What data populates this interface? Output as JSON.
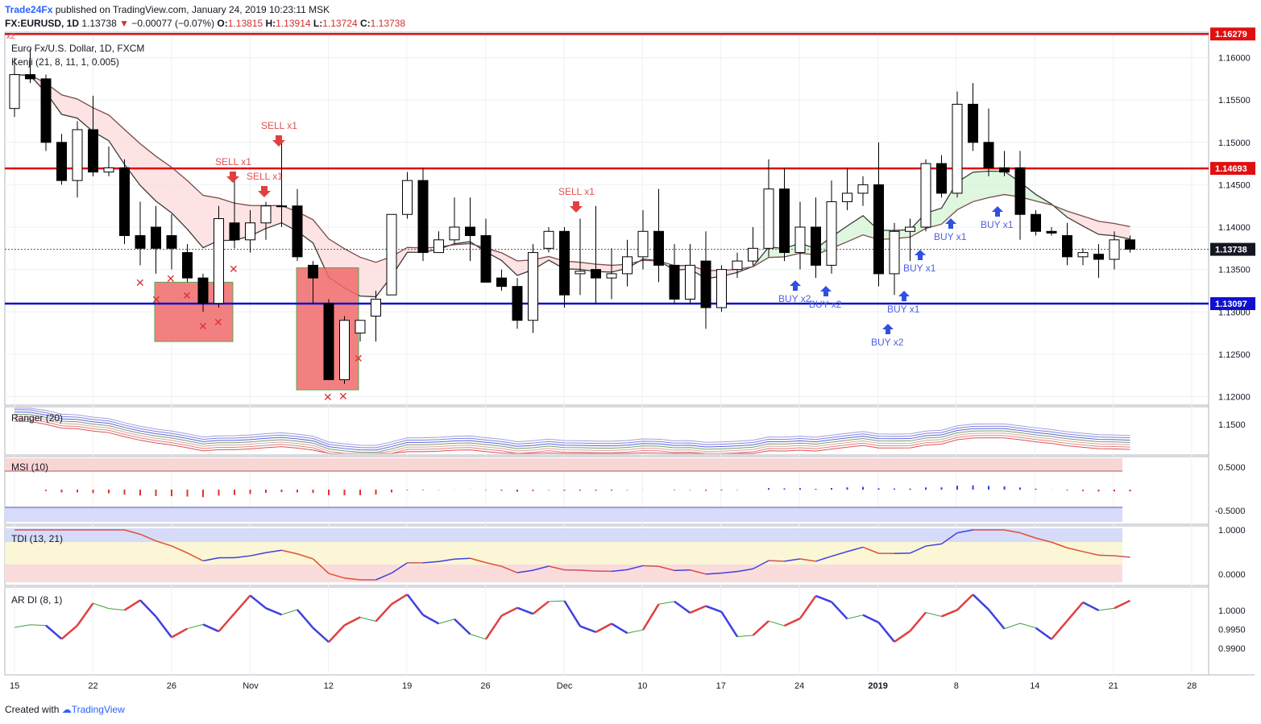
{
  "header": {
    "brand": "Trade24Fx",
    "published": "published on TradingView.com, January 24, 2019 10:23:11 MSK",
    "symbol": "FX:EURUSD, 1D",
    "last": "1.13738",
    "arrow": "▼",
    "change": "−0.00077 (−0.07%)",
    "o_label": "O:",
    "o_val": "1.13815",
    "h_label": "H:",
    "h_val": "1.13914",
    "l_label": "L:",
    "l_val": "1.13724",
    "c_label": "C:",
    "c_val": "1.13738"
  },
  "panes": {
    "main_title": "Euro Fx/U.S. Dollar, 1D, FXCM",
    "main_indicator": "Kenji (21, 8, 11, 1, 0.005)",
    "ranger": "Ranger (20)",
    "msi": "MSI (10)",
    "tdi": "TDI (13, 21)",
    "ardi": "AR DI (8, 1)"
  },
  "price_axis": [
    "1.16000",
    "1.15500",
    "1.15000",
    "1.14500",
    "1.14000",
    "1.13500",
    "1.13000",
    "1.12500",
    "1.12000"
  ],
  "price_tags": [
    {
      "value": "1.16279",
      "color": "#e01010"
    },
    {
      "value": "1.14693",
      "color": "#e01010"
    },
    {
      "value": "1.13738",
      "color": "#131722"
    },
    {
      "value": "1.13097",
      "color": "#1010d0"
    }
  ],
  "ranger_axis": [
    "1.1500"
  ],
  "msi_axis": [
    "0.5000",
    "-0.5000"
  ],
  "tdi_axis": [
    "1.0000",
    "0.0000"
  ],
  "ardi_axis": [
    "1.0000",
    "0.9950",
    "0.9900"
  ],
  "time_axis": [
    {
      "label": "15"
    },
    {
      "label": "22"
    },
    {
      "label": "26"
    },
    {
      "label": "Nov"
    },
    {
      "label": "12"
    },
    {
      "label": "19"
    },
    {
      "label": "26"
    },
    {
      "label": "Dec"
    },
    {
      "label": "10"
    },
    {
      "label": "17"
    },
    {
      "label": "24"
    },
    {
      "label": "2019"
    },
    {
      "label": "8"
    },
    {
      "label": "14"
    },
    {
      "label": "21"
    },
    {
      "label": "28"
    }
  ],
  "signals": {
    "sell": [
      "SELL x1",
      "SELL x1",
      "SELL x1",
      "SELL x1"
    ],
    "buy": [
      "BUY x2",
      "BUY x2",
      "BUY x2",
      "BUY x1",
      "BUY x1",
      "BUY x1",
      "BUY x1"
    ],
    "corner": "x2"
  },
  "colors": {
    "up": "#ffffff",
    "down": "#000000",
    "sell": "#e05050",
    "buy": "#5060e0",
    "res": "#e01010",
    "sup": "#1010d0"
  },
  "chart_data": {
    "type": "candlestick",
    "title": "Euro Fx/U.S. Dollar, 1D, FXCM",
    "levels": [
      1.16279,
      1.14693,
      1.13097
    ],
    "last_close": 1.13738,
    "ylim": [
      1.119,
      1.163
    ],
    "candles": [
      {
        "o": 1.154,
        "h": 1.16,
        "l": 1.153,
        "c": 1.158
      },
      {
        "o": 1.158,
        "h": 1.161,
        "l": 1.157,
        "c": 1.1575
      },
      {
        "o": 1.1575,
        "h": 1.158,
        "l": 1.149,
        "c": 1.15
      },
      {
        "o": 1.15,
        "h": 1.151,
        "l": 1.145,
        "c": 1.1455
      },
      {
        "o": 1.1455,
        "h": 1.1525,
        "l": 1.1435,
        "c": 1.1515
      },
      {
        "o": 1.1515,
        "h": 1.1555,
        "l": 1.146,
        "c": 1.1465
      },
      {
        "o": 1.1465,
        "h": 1.1495,
        "l": 1.146,
        "c": 1.147
      },
      {
        "o": 1.147,
        "h": 1.148,
        "l": 1.138,
        "c": 1.139
      },
      {
        "o": 1.139,
        "h": 1.143,
        "l": 1.1355,
        "c": 1.1375
      },
      {
        "o": 1.14,
        "h": 1.1425,
        "l": 1.1345,
        "c": 1.1375
      },
      {
        "o": 1.139,
        "h": 1.1415,
        "l": 1.135,
        "c": 1.1375
      },
      {
        "o": 1.137,
        "h": 1.138,
        "l": 1.1335,
        "c": 1.134
      },
      {
        "o": 1.134,
        "h": 1.1345,
        "l": 1.13,
        "c": 1.131
      },
      {
        "o": 1.131,
        "h": 1.1425,
        "l": 1.1305,
        "c": 1.141
      },
      {
        "o": 1.1405,
        "h": 1.1455,
        "l": 1.1375,
        "c": 1.1385
      },
      {
        "o": 1.1385,
        "h": 1.142,
        "l": 1.137,
        "c": 1.1405
      },
      {
        "o": 1.1405,
        "h": 1.143,
        "l": 1.1385,
        "c": 1.1425
      },
      {
        "o": 1.1425,
        "h": 1.15,
        "l": 1.14,
        "c": 1.1425
      },
      {
        "o": 1.1425,
        "h": 1.1445,
        "l": 1.136,
        "c": 1.1365
      },
      {
        "o": 1.1355,
        "h": 1.136,
        "l": 1.131,
        "c": 1.134
      },
      {
        "o": 1.131,
        "h": 1.1315,
        "l": 1.122,
        "c": 1.122
      },
      {
        "o": 1.122,
        "h": 1.1295,
        "l": 1.1215,
        "c": 1.129
      },
      {
        "o": 1.1275,
        "h": 1.129,
        "l": 1.1265,
        "c": 1.129
      },
      {
        "o": 1.1295,
        "h": 1.1325,
        "l": 1.1265,
        "c": 1.1315
      },
      {
        "o": 1.132,
        "h": 1.1415,
        "l": 1.132,
        "c": 1.1415
      },
      {
        "o": 1.1415,
        "h": 1.1465,
        "l": 1.141,
        "c": 1.1455
      },
      {
        "o": 1.1455,
        "h": 1.147,
        "l": 1.136,
        "c": 1.137
      },
      {
        "o": 1.137,
        "h": 1.1395,
        "l": 1.137,
        "c": 1.1385
      },
      {
        "o": 1.1385,
        "h": 1.1435,
        "l": 1.138,
        "c": 1.14
      },
      {
        "o": 1.14,
        "h": 1.1435,
        "l": 1.136,
        "c": 1.139
      },
      {
        "o": 1.139,
        "h": 1.141,
        "l": 1.1335,
        "c": 1.1335
      },
      {
        "o": 1.134,
        "h": 1.135,
        "l": 1.1325,
        "c": 1.133
      },
      {
        "o": 1.133,
        "h": 1.134,
        "l": 1.128,
        "c": 1.129
      },
      {
        "o": 1.129,
        "h": 1.138,
        "l": 1.1275,
        "c": 1.137
      },
      {
        "o": 1.1375,
        "h": 1.14,
        "l": 1.137,
        "c": 1.1395
      },
      {
        "o": 1.1395,
        "h": 1.14,
        "l": 1.1305,
        "c": 1.132
      },
      {
        "o": 1.1345,
        "h": 1.141,
        "l": 1.132,
        "c": 1.1348
      },
      {
        "o": 1.135,
        "h": 1.1425,
        "l": 1.131,
        "c": 1.134
      },
      {
        "o": 1.134,
        "h": 1.1375,
        "l": 1.1315,
        "c": 1.1345
      },
      {
        "o": 1.1345,
        "h": 1.1385,
        "l": 1.133,
        "c": 1.1365
      },
      {
        "o": 1.1365,
        "h": 1.142,
        "l": 1.135,
        "c": 1.1395
      },
      {
        "o": 1.1395,
        "h": 1.1445,
        "l": 1.1335,
        "c": 1.1355
      },
      {
        "o": 1.1355,
        "h": 1.138,
        "l": 1.131,
        "c": 1.1315
      },
      {
        "o": 1.1315,
        "h": 1.138,
        "l": 1.131,
        "c": 1.1355
      },
      {
        "o": 1.136,
        "h": 1.1395,
        "l": 1.128,
        "c": 1.1305
      },
      {
        "o": 1.1305,
        "h": 1.1355,
        "l": 1.13,
        "c": 1.135
      },
      {
        "o": 1.135,
        "h": 1.137,
        "l": 1.134,
        "c": 1.136
      },
      {
        "o": 1.136,
        "h": 1.14,
        "l": 1.1355,
        "c": 1.1375
      },
      {
        "o": 1.1375,
        "h": 1.148,
        "l": 1.1365,
        "c": 1.1445
      },
      {
        "o": 1.1445,
        "h": 1.147,
        "l": 1.136,
        "c": 1.137
      },
      {
        "o": 1.137,
        "h": 1.143,
        "l": 1.135,
        "c": 1.14
      },
      {
        "o": 1.14,
        "h": 1.1435,
        "l": 1.134,
        "c": 1.1355
      },
      {
        "o": 1.1355,
        "h": 1.1455,
        "l": 1.1345,
        "c": 1.143
      },
      {
        "o": 1.143,
        "h": 1.147,
        "l": 1.142,
        "c": 1.144
      },
      {
        "o": 1.144,
        "h": 1.146,
        "l": 1.1425,
        "c": 1.145
      },
      {
        "o": 1.145,
        "h": 1.15,
        "l": 1.133,
        "c": 1.1345
      },
      {
        "o": 1.1345,
        "h": 1.1405,
        "l": 1.132,
        "c": 1.1395
      },
      {
        "o": 1.1395,
        "h": 1.141,
        "l": 1.136,
        "c": 1.14
      },
      {
        "o": 1.14,
        "h": 1.148,
        "l": 1.1395,
        "c": 1.1475
      },
      {
        "o": 1.1475,
        "h": 1.1485,
        "l": 1.1435,
        "c": 1.144
      },
      {
        "o": 1.144,
        "h": 1.156,
        "l": 1.1435,
        "c": 1.1545
      },
      {
        "o": 1.1545,
        "h": 1.157,
        "l": 1.149,
        "c": 1.15
      },
      {
        "o": 1.15,
        "h": 1.154,
        "l": 1.146,
        "c": 1.147
      },
      {
        "o": 1.147,
        "h": 1.149,
        "l": 1.146,
        "c": 1.1465
      },
      {
        "o": 1.147,
        "h": 1.149,
        "l": 1.1385,
        "c": 1.1415
      },
      {
        "o": 1.1415,
        "h": 1.142,
        "l": 1.139,
        "c": 1.1395
      },
      {
        "o": 1.1395,
        "h": 1.14,
        "l": 1.139,
        "c": 1.1393
      },
      {
        "o": 1.139,
        "h": 1.1405,
        "l": 1.1355,
        "c": 1.1365
      },
      {
        "o": 1.1365,
        "h": 1.1375,
        "l": 1.1355,
        "c": 1.137
      },
      {
        "o": 1.1368,
        "h": 1.138,
        "l": 1.134,
        "c": 1.1362
      },
      {
        "o": 1.1362,
        "h": 1.1395,
        "l": 1.135,
        "c": 1.1385
      },
      {
        "o": 1.1385,
        "h": 1.139,
        "l": 1.137,
        "c": 1.1374
      }
    ]
  }
}
